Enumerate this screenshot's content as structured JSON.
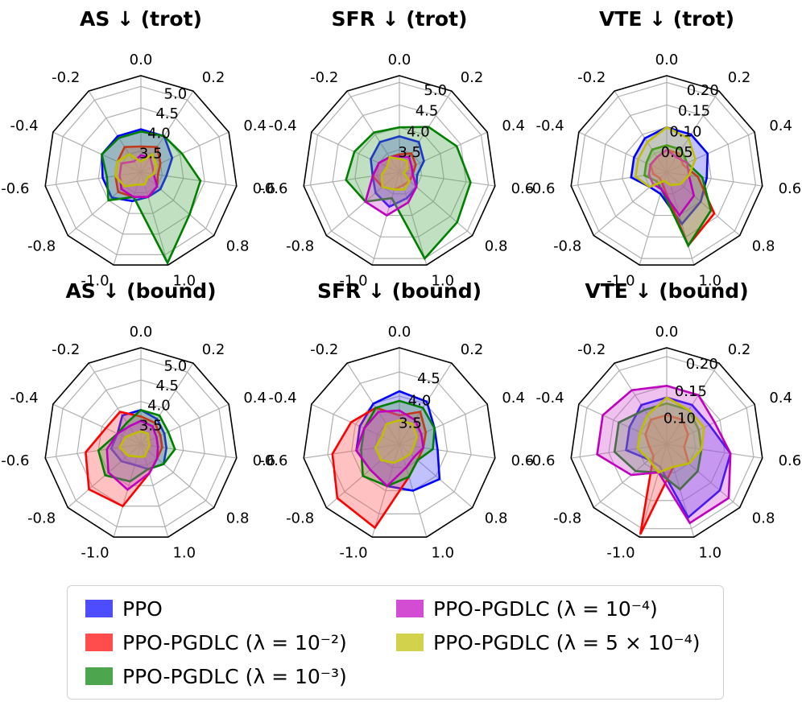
{
  "colors": {
    "series": [
      "#0000ff",
      "#ff0000",
      "#008000",
      "#bf00bf",
      "#bfbf00"
    ],
    "fills": [
      "#4d4dff",
      "#ff4d4d",
      "#4da64d",
      "#d24dd2",
      "#d2d24d"
    ],
    "octagon": "#000000",
    "grid": "#b0b0b0"
  },
  "legend": {
    "items": [
      {
        "label": "PPO"
      },
      {
        "label": "PPO-PGDLC (λ = 10⁻²)"
      },
      {
        "label": "PPO-PGDLC (λ = 10⁻³)"
      },
      {
        "label": "PPO-PGDLC (λ = 10⁻⁴)"
      },
      {
        "label": "PPO-PGDLC (λ = 5 × 10⁻⁴)"
      }
    ]
  },
  "chart_data": [
    {
      "type": "radar",
      "title": "AS ↓ (trot)",
      "angle_labels": [
        "0.0",
        "0.2",
        "0.4",
        "0.6",
        "0.8",
        "1.0",
        "-1.0",
        "-0.8",
        "-0.6",
        "-0.4",
        "-0.2"
      ],
      "radial_ticks": [
        "3.5",
        "4.0",
        "4.5",
        "5.0"
      ],
      "rlim": [
        3.0,
        5.25
      ],
      "series": [
        {
          "name": "PPO",
          "values": [
            4.0,
            4.0,
            3.8,
            3.6,
            3.6,
            3.6,
            3.7,
            3.9,
            3.9,
            4.0,
            4.0
          ]
        },
        {
          "name": "PPO-PGDLC (λ=10⁻²)",
          "values": [
            3.6,
            3.7,
            3.5,
            3.4,
            3.5,
            3.6,
            3.6,
            3.7,
            3.6,
            3.6,
            3.7
          ]
        },
        {
          "name": "PPO-PGDLC (λ=10⁻³)",
          "values": [
            3.95,
            4.0,
            4.05,
            4.4,
            4.5,
            5.2,
            3.6,
            4.0,
            3.8,
            4.0,
            3.95
          ]
        },
        {
          "name": "PPO-PGDLC (λ=10⁻⁴)",
          "values": [
            3.4,
            3.4,
            3.3,
            3.3,
            3.5,
            3.6,
            3.6,
            3.6,
            3.5,
            3.5,
            3.3
          ]
        },
        {
          "name": "PPO-PGDLC (λ=5×10⁻⁴)",
          "values": [
            3.25,
            3.5,
            3.4,
            3.3,
            3.2,
            3.3,
            3.3,
            3.5,
            3.6,
            3.6,
            3.5
          ]
        }
      ]
    },
    {
      "type": "radar",
      "title": "SFR ↓ (trot)",
      "angle_labels": [
        "0.0",
        "0.2",
        "0.4",
        "0.6",
        "0.8",
        "1.0",
        "-1.0",
        "-0.8",
        "-0.6",
        "-0.4",
        "-0.2"
      ],
      "radial_ticks": [
        "3.5",
        "4.0",
        "4.5",
        "5.0"
      ],
      "rlim": [
        3.0,
        5.15
      ],
      "series": [
        {
          "name": "PPO",
          "values": [
            3.8,
            3.8,
            3.6,
            3.4,
            3.5,
            3.6,
            3.8,
            3.7,
            3.6,
            3.7,
            3.8
          ]
        },
        {
          "name": "PPO-PGDLC (λ=10⁻²)",
          "values": [
            3.4,
            3.5,
            3.4,
            3.3,
            3.3,
            3.3,
            3.4,
            3.5,
            3.6,
            3.5,
            3.4
          ]
        },
        {
          "name": "PPO-PGDLC (λ=10⁻³)",
          "values": [
            4.0,
            4.2,
            4.4,
            4.6,
            4.7,
            5.0,
            3.6,
            4.0,
            4.2,
            4.1,
            4.05
          ]
        },
        {
          "name": "PPO-PGDLC (λ=10⁻⁴)",
          "values": [
            3.35,
            3.4,
            3.3,
            3.3,
            3.5,
            3.7,
            4.0,
            4.0,
            3.6,
            3.5,
            3.4
          ]
        },
        {
          "name": "PPO-PGDLC (λ=5×10⁻⁴)",
          "values": [
            3.3,
            3.3,
            3.2,
            3.1,
            3.3,
            3.4,
            3.4,
            3.5,
            3.4,
            3.3,
            3.4
          ]
        }
      ]
    },
    {
      "type": "radar",
      "title": "VTE ↓ (trot)",
      "angle_labels": [
        "0.0",
        "0.2",
        "0.4",
        "0.6",
        "0.8",
        "1.0",
        "-1.0",
        "-0.8",
        "-0.6",
        "-0.4",
        "-0.2"
      ],
      "radial_ticks": [
        "0.05",
        "0.10",
        "0.15",
        "0.20"
      ],
      "rlim": [
        0.0,
        0.215
      ],
      "series": [
        {
          "name": "PPO",
          "values": [
            0.1,
            0.1,
            0.1,
            0.09,
            0.1,
            0.12,
            0.05,
            0.05,
            0.08,
            0.08,
            0.09
          ]
        },
        {
          "name": "PPO-PGDLC (λ=10⁻²)",
          "values": [
            0.05,
            0.05,
            0.04,
            0.07,
            0.14,
            0.17,
            0.03,
            0.02,
            0.03,
            0.04,
            0.04
          ]
        },
        {
          "name": "PPO-PGDLC (λ=10⁻³)",
          "values": [
            0.06,
            0.06,
            0.05,
            0.08,
            0.13,
            0.17,
            0.04,
            0.03,
            0.05,
            0.05,
            0.06
          ]
        },
        {
          "name": "PPO-PGDLC (λ=10⁻⁴)",
          "values": [
            0.05,
            0.04,
            0.05,
            0.05,
            0.08,
            0.1,
            0.04,
            0.04,
            0.04,
            0.04,
            0.04
          ]
        },
        {
          "name": "PPO-PGDLC (λ=5×10⁻⁴)",
          "values": [
            0.1,
            0.09,
            0.07,
            0.05,
            0.04,
            0.03,
            0.02,
            0.05,
            0.07,
            0.07,
            0.08
          ]
        }
      ]
    },
    {
      "type": "radar",
      "title": "AS ↓ (bound)",
      "angle_labels": [
        "0.0",
        "0.2",
        "0.4",
        "0.6",
        "0.8",
        "1.0",
        "-1.0",
        "-0.8",
        "-0.6",
        "-0.4",
        "-0.2"
      ],
      "radial_ticks": [
        "3.5",
        "4.0",
        "4.5",
        "5.0"
      ],
      "rlim": [
        3.0,
        5.25
      ],
      "series": [
        {
          "name": "PPO",
          "values": [
            3.8,
            3.7,
            3.6,
            3.6,
            3.7,
            3.6,
            3.5,
            3.6,
            3.7,
            3.6,
            3.8
          ]
        },
        {
          "name": "PPO-PGDLC (λ=10⁻²)",
          "values": [
            3.65,
            3.6,
            3.5,
            3.5,
            3.5,
            3.7,
            4.5,
            4.6,
            4.3,
            3.9,
            3.9
          ]
        },
        {
          "name": "PPO-PGDLC (λ=10⁻³)",
          "values": [
            3.8,
            3.8,
            3.7,
            3.8,
            3.7,
            3.6,
            3.9,
            4.1,
            4.0,
            3.6,
            3.6
          ]
        },
        {
          "name": "PPO-PGDLC (λ=10⁻⁴)",
          "values": [
            3.55,
            3.5,
            3.4,
            3.4,
            3.5,
            3.7,
            4.1,
            4.0,
            3.8,
            3.6,
            3.5
          ]
        },
        {
          "name": "PPO-PGDLC (λ=5×10⁻⁴)",
          "values": [
            3.3,
            3.3,
            3.2,
            3.2,
            3.2,
            3.3,
            3.3,
            3.4,
            3.5,
            3.4,
            3.3
          ]
        }
      ]
    },
    {
      "type": "radar",
      "title": "SFR ↓ (bound)",
      "angle_labels": [
        "0.0",
        "0.2",
        "0.4",
        "0.6",
        "0.8",
        "1.0",
        "-1.0",
        "-0.8",
        "-0.6",
        "-0.4",
        "-0.2"
      ],
      "radial_ticks": [
        "3.5",
        "4.0",
        "4.5"
      ],
      "rlim": [
        3.0,
        5.0
      ],
      "series": [
        {
          "name": "PPO",
          "values": [
            4.1,
            4.05,
            3.8,
            3.8,
            4.1,
            4.0,
            3.9,
            3.8,
            3.9,
            3.9,
            4.0
          ]
        },
        {
          "name": "PPO-PGDLC (λ=10⁻²)",
          "values": [
            3.6,
            3.8,
            3.6,
            3.5,
            3.5,
            3.7,
            4.8,
            4.7,
            4.4,
            4.1,
            3.9
          ]
        },
        {
          "name": "PPO-PGDLC (λ=10⁻³)",
          "values": [
            3.9,
            3.9,
            3.8,
            3.7,
            3.5,
            3.7,
            3.9,
            4.0,
            3.8,
            3.8,
            3.9
          ]
        },
        {
          "name": "PPO-PGDLC (λ=10⁻⁴)",
          "values": [
            3.7,
            3.6,
            3.5,
            3.5,
            3.4,
            3.5,
            3.9,
            3.8,
            3.9,
            3.8,
            3.8
          ]
        },
        {
          "name": "PPO-PGDLC (λ=5×10⁻⁴)",
          "values": [
            3.5,
            3.5,
            3.4,
            3.3,
            3.3,
            3.3,
            3.4,
            3.5,
            3.5,
            3.4,
            3.5
          ]
        }
      ]
    },
    {
      "type": "radar",
      "title": "VTE ↓ (bound)",
      "angle_labels": [
        "0.0",
        "0.2",
        "0.4",
        "0.6",
        "0.8",
        "1.0",
        "-1.0",
        "-0.8",
        "-0.6",
        "-0.4",
        "-0.2"
      ],
      "radial_ticks": [
        "0.10",
        "0.15",
        "0.20"
      ],
      "rlim": [
        0.05,
        0.215
      ],
      "series": [
        {
          "name": "PPO",
          "values": [
            0.13,
            0.13,
            0.13,
            0.16,
            0.17,
            0.18,
            0.09,
            0.09,
            0.12,
            0.12,
            0.13
          ]
        },
        {
          "name": "PPO-PGDLC (λ=10⁻²)",
          "values": [
            0.1,
            0.1,
            0.09,
            0.08,
            0.1,
            0.09,
            0.21,
            0.08,
            0.08,
            0.09,
            0.1
          ]
        },
        {
          "name": "PPO-PGDLC (λ=10⁻³)",
          "values": [
            0.12,
            0.12,
            0.11,
            0.11,
            0.12,
            0.13,
            0.1,
            0.12,
            0.14,
            0.14,
            0.12
          ]
        },
        {
          "name": "PPO-PGDLC (λ=10⁻⁴)",
          "values": [
            0.15,
            0.15,
            0.14,
            0.16,
            0.19,
            0.19,
            0.1,
            0.13,
            0.17,
            0.17,
            0.16
          ]
        },
        {
          "name": "PPO-PGDLC (λ=5×10⁻⁴)",
          "values": [
            0.13,
            0.12,
            0.12,
            0.11,
            0.1,
            0.09,
            0.1,
            0.09,
            0.1,
            0.1,
            0.11
          ]
        }
      ]
    }
  ]
}
